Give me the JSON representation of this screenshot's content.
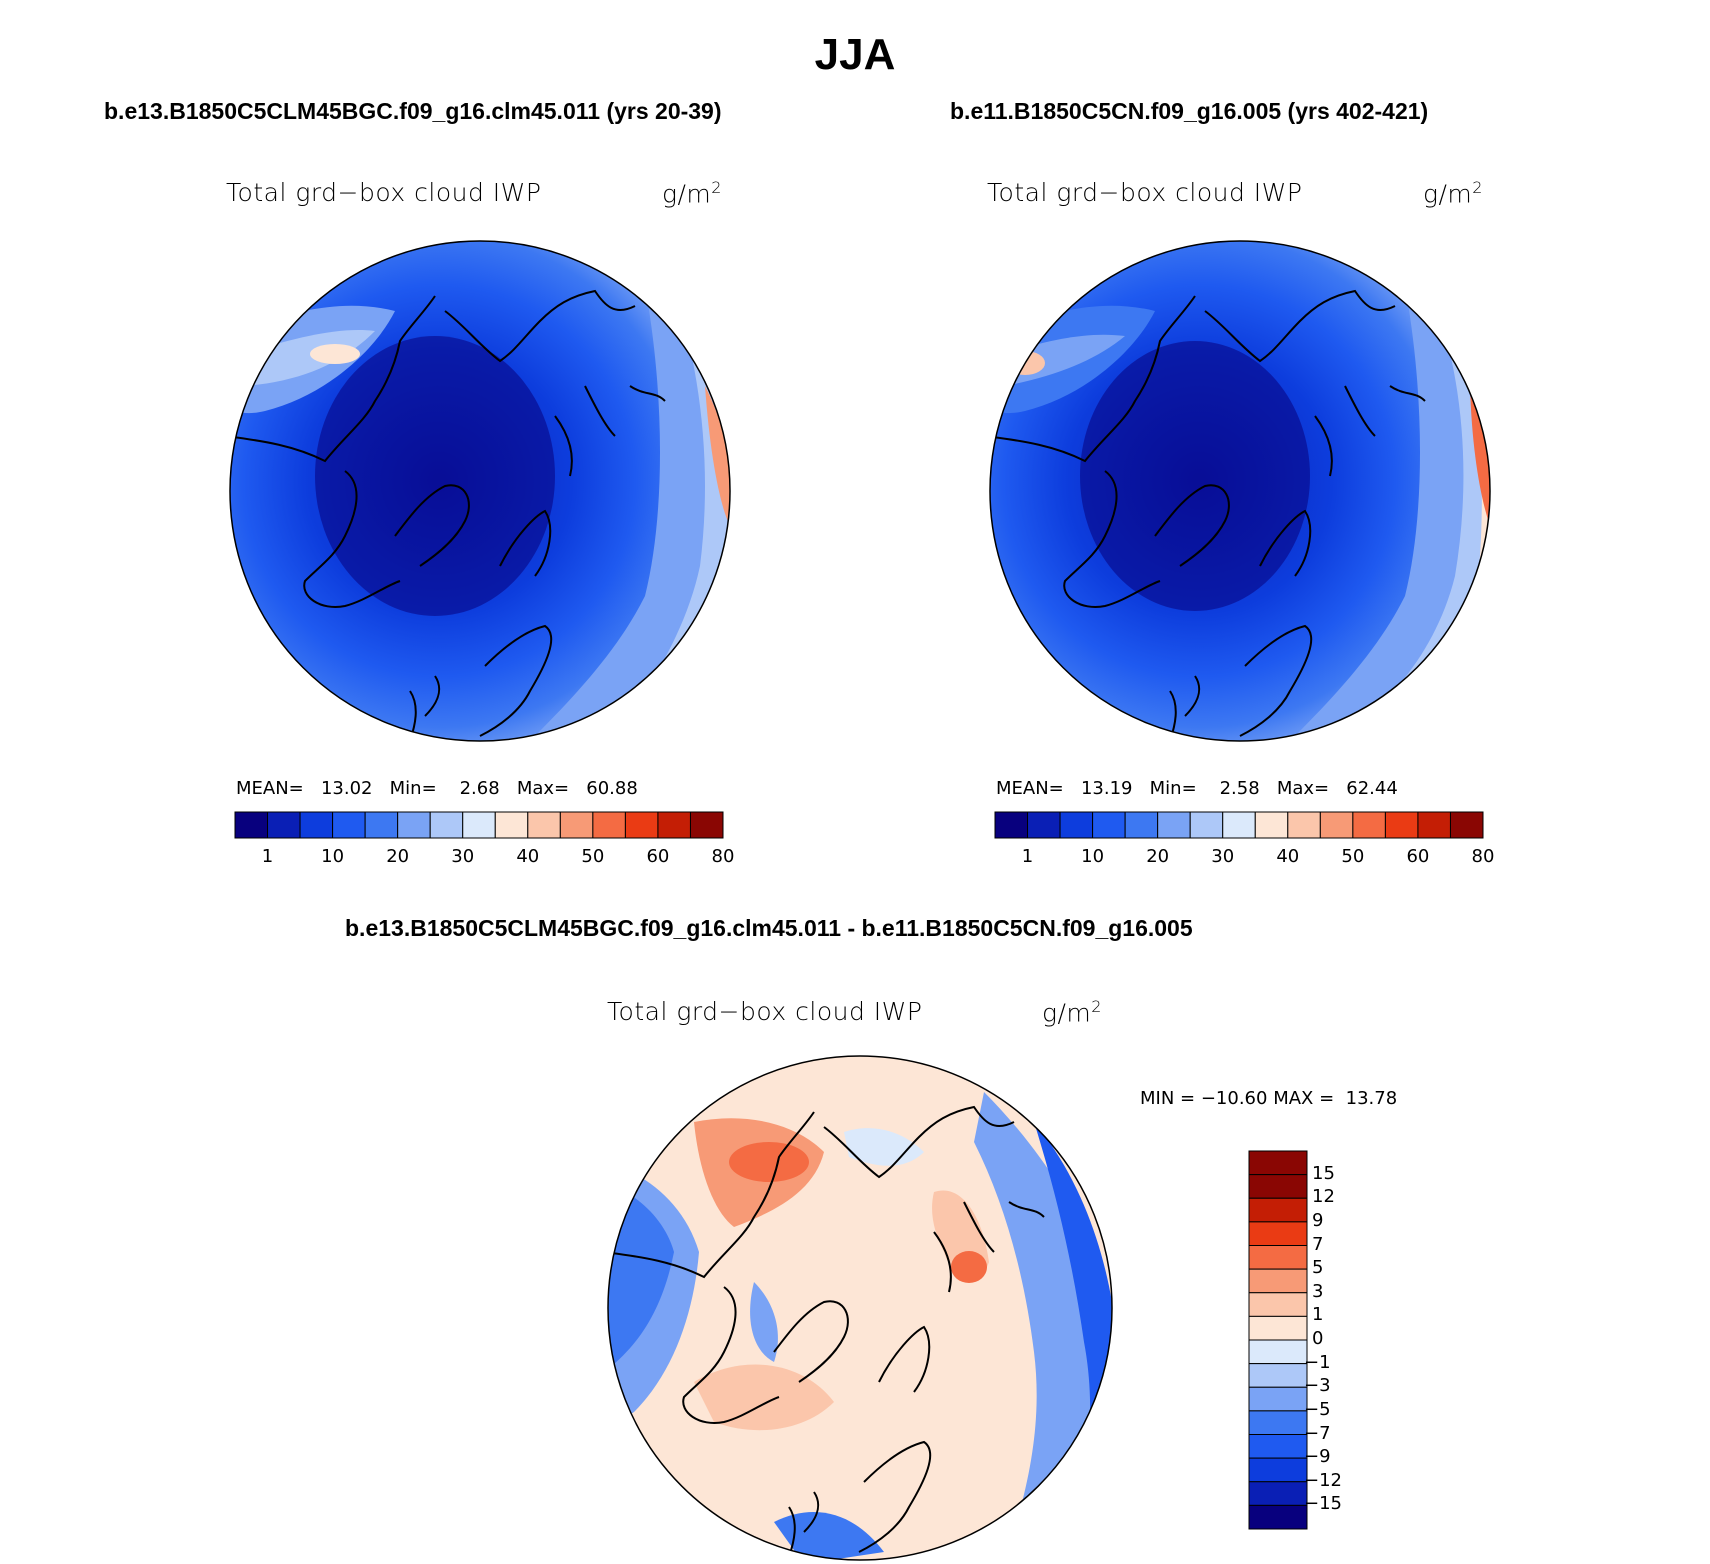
{
  "figure": {
    "title": "JJA",
    "colors": {
      "abs_scale": [
        "#08007e",
        "#0a1fb5",
        "#0d3ddd",
        "#1f5af0",
        "#3d78f2",
        "#7aa3f5",
        "#adc8f8",
        "#dbe9fb",
        "#fde6d6",
        "#fbc6ab",
        "#f79a76",
        "#f46b43",
        "#ea3b14",
        "#c41e05",
        "#8a0603"
      ],
      "diff_scale": [
        "#08007e",
        "#0a1fb5",
        "#0d3ddd",
        "#1f5af0",
        "#3d78f2",
        "#7aa3f5",
        "#adc8f8",
        "#dbe9fb",
        "#fde6d6",
        "#fbc6ab",
        "#f79a76",
        "#f46b43",
        "#ea3b14",
        "#c41e05",
        "#8a0603"
      ]
    }
  },
  "chart_data": [
    {
      "type": "heatmap",
      "projection": "north-polar-stereographic",
      "case": "b.e13.B1850C5CLM45BGC.f09_g16.clm45.011 (yrs 20-39)",
      "variable": "Total grd−box cloud IWP",
      "units_prefix": "g/m",
      "units_exp": "2",
      "stats": {
        "mean_label": "MEAN=",
        "mean": "13.02",
        "min_label": "Min=",
        "min": "2.68",
        "max_label": "Max=",
        "max": "60.88"
      },
      "colorbar_ticks": [
        "1",
        "10",
        "20",
        "30",
        "40",
        "50",
        "60",
        "80"
      ],
      "colorbar_levels": [
        1,
        5,
        10,
        15,
        20,
        25,
        30,
        35,
        40,
        45,
        50,
        55,
        60,
        70,
        80
      ]
    },
    {
      "type": "heatmap",
      "projection": "north-polar-stereographic",
      "case": "b.e11.B1850C5CN.f09_g16.005 (yrs 402-421)",
      "variable": "Total grd−box cloud IWP",
      "units_prefix": "g/m",
      "units_exp": "2",
      "stats": {
        "mean_label": "MEAN=",
        "mean": "13.19",
        "min_label": "Min=",
        "min": "2.58",
        "max_label": "Max=",
        "max": "62.44"
      },
      "colorbar_ticks": [
        "1",
        "10",
        "20",
        "30",
        "40",
        "50",
        "60",
        "80"
      ],
      "colorbar_levels": [
        1,
        5,
        10,
        15,
        20,
        25,
        30,
        35,
        40,
        45,
        50,
        55,
        60,
        70,
        80
      ]
    },
    {
      "type": "heatmap",
      "projection": "north-polar-stereographic",
      "case": "b.e13.B1850C5CLM45BGC.f09_g16.clm45.011 - b.e11.B1850C5CN.f09_g16.005",
      "variable": "Total grd−box cloud IWP",
      "units_prefix": "g/m",
      "units_exp": "2",
      "stats": {
        "min_label": "MIN =",
        "min": "−10.60",
        "max_label": "MAX =",
        "max": "13.78"
      },
      "colorbar_ticks": [
        "15",
        "12",
        "9",
        "7",
        "5",
        "3",
        "1",
        "0",
        "−1",
        "−3",
        "−5",
        "−7",
        "−9",
        "−12",
        "−15"
      ]
    }
  ]
}
